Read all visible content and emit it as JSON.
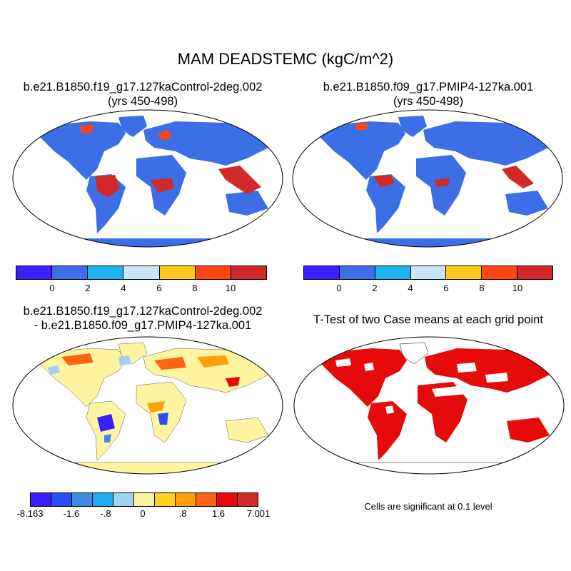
{
  "title": "MAM DEADSTEMC (kgC/m^2)",
  "panels": [
    {
      "title_line1": "b.e21.B1850.f19_g17.127kaControl-2deg.002",
      "title_line2": "(yrs 450-498)"
    },
    {
      "title_line1": "b.e21.B1850.f09_g17.PMIP4-127ka.001",
      "title_line2": "(yrs 450-498)"
    },
    {
      "title_line1": "b.e21.B1850.f19_g17.127kaControl-2deg.002",
      "title_line2": "- b.e21.B1850.f09_g17.PMIP4-127ka.001"
    },
    {
      "title_line1": "T-Test of two Case means at each grid point",
      "title_line2": ""
    }
  ],
  "colorbar_abs": {
    "colors": [
      "#3c1eff",
      "#3c6ee6",
      "#1eb4f0",
      "#c8e6f8",
      "#ffc81e",
      "#ff4614",
      "#d22828"
    ],
    "labels": [
      "0",
      "2",
      "4",
      "6",
      "8",
      "10"
    ]
  },
  "colorbar_diff": {
    "colors": [
      "#3c1eff",
      "#2850f0",
      "#3c8ce6",
      "#1eaaf5",
      "#a0d2f0",
      "#fff5a0",
      "#ffd21e",
      "#ffa00a",
      "#ff6414",
      "#e60a0a",
      "#d22828"
    ],
    "labels": [
      "-8.163",
      "-1.6",
      "-.8",
      "0",
      ".8",
      "1.6",
      "7.001"
    ]
  },
  "ttest_note": "Cells are significant at 0.1 level",
  "colors": {
    "ocean": "#ffffff",
    "significant": "#e60a0a",
    "land_base": "#3c6ee6",
    "diff_base": "#fff5a0"
  }
}
